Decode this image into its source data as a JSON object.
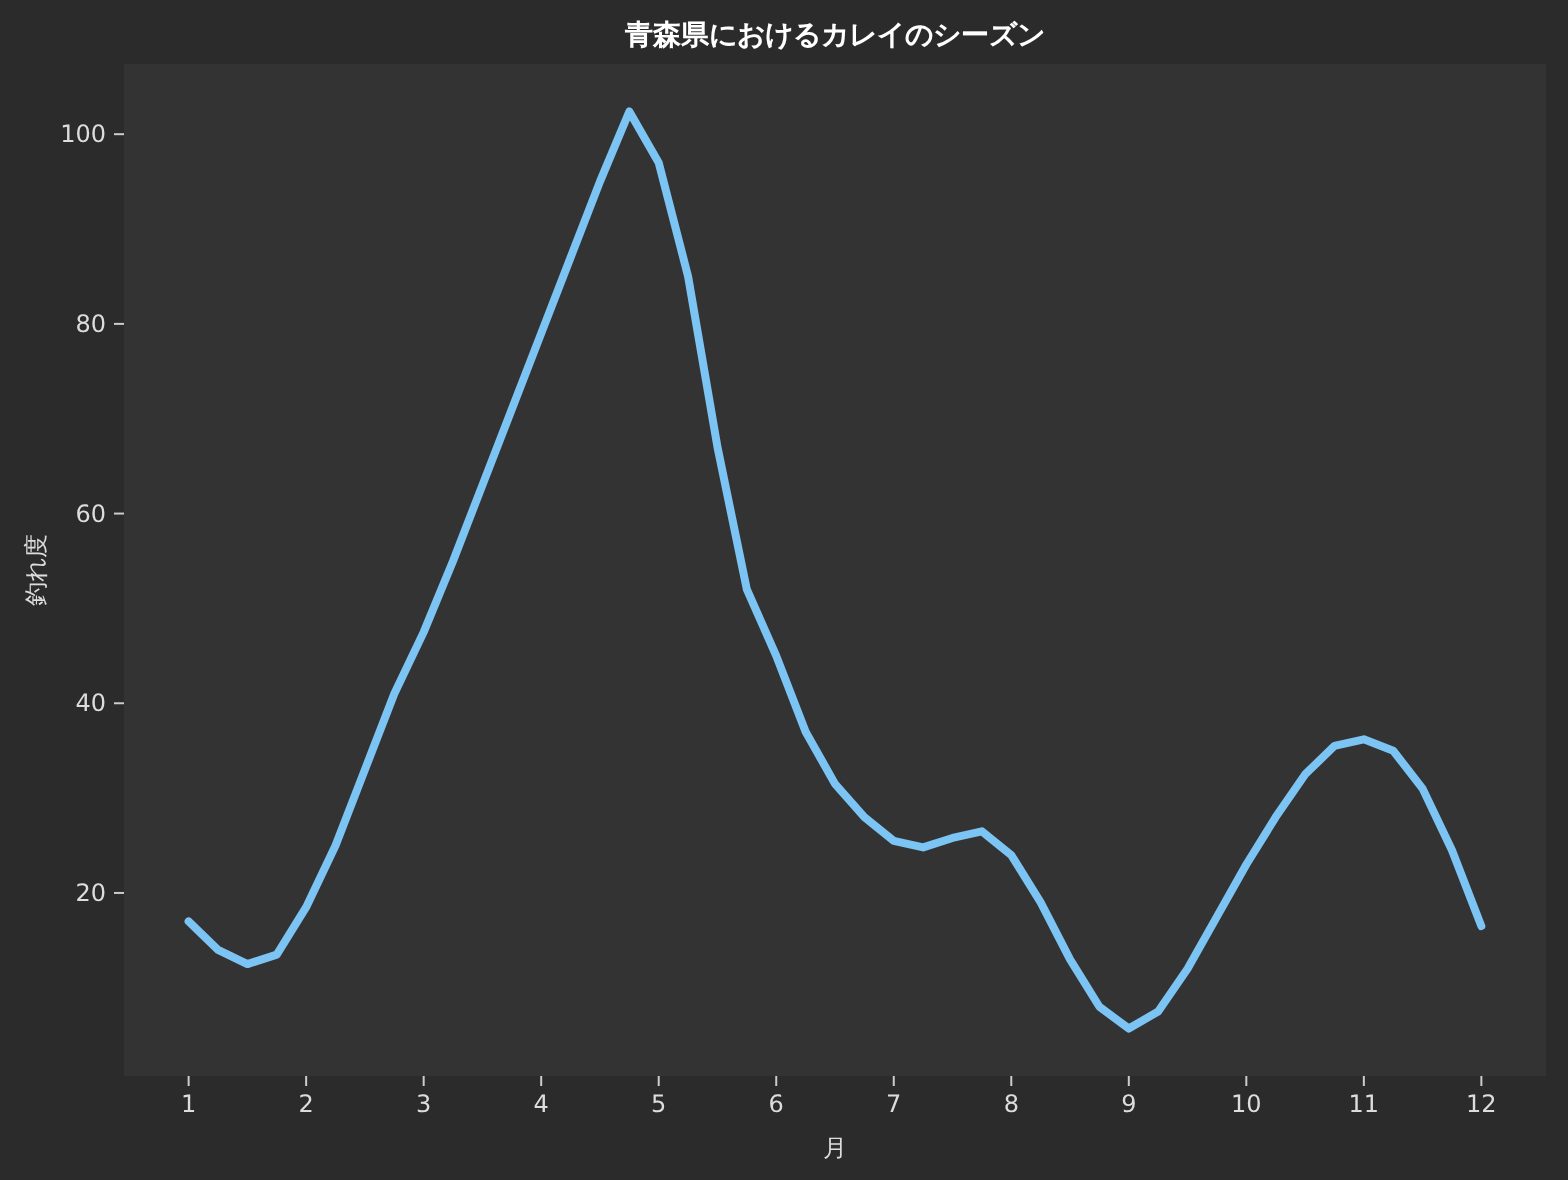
{
  "chart_data": {
    "type": "line",
    "title": "青森県におけるカレイのシーズン",
    "xlabel": "月",
    "ylabel": "釣れ度",
    "x": [
      1,
      1.25,
      1.5,
      1.75,
      2,
      2.25,
      2.5,
      2.75,
      3,
      3.25,
      3.5,
      3.75,
      4,
      4.25,
      4.5,
      4.75,
      5,
      5.25,
      5.5,
      5.75,
      6,
      6.25,
      6.5,
      6.75,
      7,
      7.25,
      7.5,
      7.75,
      8,
      8.25,
      8.5,
      8.75,
      9,
      9.25,
      9.5,
      9.75,
      10,
      10.25,
      10.5,
      10.75,
      11,
      11.25,
      11.5,
      11.75,
      12
    ],
    "series": [
      {
        "color": "#7cc4f4",
        "values": [
          17,
          14,
          12.5,
          13.5,
          18.5,
          25,
          33,
          41,
          47.5,
          55,
          63,
          71,
          79,
          87,
          95,
          102.4,
          97,
          85,
          67,
          52,
          45,
          37,
          31.5,
          28,
          25.5,
          24.8,
          25.8,
          26.5,
          24,
          19,
          13,
          8,
          5.7,
          7.5,
          12,
          17.5,
          23,
          28,
          32.5,
          35.5,
          36.2,
          35,
          31,
          24.5,
          16.5
        ]
      }
    ],
    "xlim": [
      0.45,
      12.55
    ],
    "ylim": [
      0.7,
      107.4
    ],
    "xticks": [
      1,
      2,
      3,
      4,
      5,
      6,
      7,
      8,
      9,
      10,
      11,
      12
    ],
    "yticks": [
      20,
      40,
      60,
      80,
      100
    ]
  }
}
